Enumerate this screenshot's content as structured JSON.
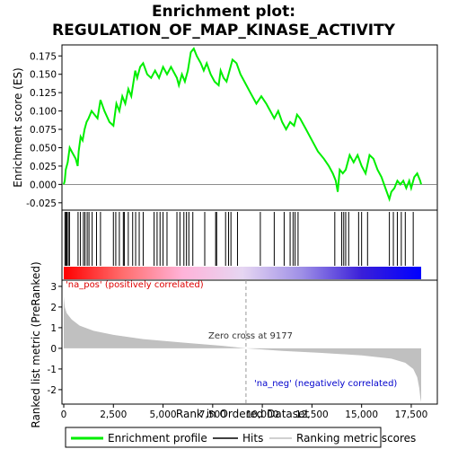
{
  "title_line1": "Enrichment plot:",
  "title_line2": "REGULATION_OF_MAP_KINASE_ACTIVITY",
  "chart_data": {
    "type": "line",
    "x_axis": {
      "label": "Rank in Ordered Dataset",
      "range": [
        0,
        18000
      ],
      "ticks": [
        0,
        2500,
        5000,
        7500,
        10000,
        12500,
        15000,
        17500
      ],
      "tick_labels": [
        "0",
        "2,500",
        "5,000",
        "7,500",
        "10,000",
        "12,500",
        "15,000",
        "17,500"
      ]
    },
    "top_panel": {
      "ylabel": "Enrichment score (ES)",
      "ylim": [
        -0.035,
        0.19
      ],
      "yticks": [
        -0.025,
        0,
        0.025,
        0.05,
        0.075,
        0.1,
        0.125,
        0.15,
        0.175
      ],
      "ytick_labels": [
        "-0.025",
        "0.000",
        "0.025",
        "0.050",
        "0.075",
        "0.100",
        "0.125",
        "0.150",
        "0.175"
      ],
      "series_name": "Enrichment profile",
      "color": "#00ee00",
      "profile": [
        [
          0,
          0
        ],
        [
          50,
          0.005
        ],
        [
          100,
          0.02
        ],
        [
          200,
          0.03
        ],
        [
          300,
          0.05
        ],
        [
          400,
          0.045
        ],
        [
          600,
          0.035
        ],
        [
          700,
          0.025
        ],
        [
          750,
          0.045
        ],
        [
          850,
          0.065
        ],
        [
          950,
          0.06
        ],
        [
          1050,
          0.075
        ],
        [
          1150,
          0.085
        ],
        [
          1250,
          0.09
        ],
        [
          1400,
          0.1
        ],
        [
          1550,
          0.095
        ],
        [
          1700,
          0.09
        ],
        [
          1850,
          0.115
        ],
        [
          2050,
          0.1
        ],
        [
          2300,
          0.085
        ],
        [
          2500,
          0.08
        ],
        [
          2650,
          0.11
        ],
        [
          2800,
          0.1
        ],
        [
          2950,
          0.12
        ],
        [
          3100,
          0.11
        ],
        [
          3250,
          0.13
        ],
        [
          3400,
          0.12
        ],
        [
          3600,
          0.155
        ],
        [
          3700,
          0.145
        ],
        [
          3850,
          0.16
        ],
        [
          4000,
          0.165
        ],
        [
          4200,
          0.15
        ],
        [
          4400,
          0.145
        ],
        [
          4600,
          0.155
        ],
        [
          4800,
          0.145
        ],
        [
          5000,
          0.16
        ],
        [
          5200,
          0.15
        ],
        [
          5400,
          0.16
        ],
        [
          5700,
          0.145
        ],
        [
          5800,
          0.135
        ],
        [
          5950,
          0.15
        ],
        [
          6100,
          0.14
        ],
        [
          6250,
          0.155
        ],
        [
          6400,
          0.18
        ],
        [
          6550,
          0.185
        ],
        [
          6700,
          0.175
        ],
        [
          6900,
          0.165
        ],
        [
          7050,
          0.155
        ],
        [
          7200,
          0.165
        ],
        [
          7400,
          0.15
        ],
        [
          7600,
          0.14
        ],
        [
          7800,
          0.135
        ],
        [
          7900,
          0.155
        ],
        [
          8050,
          0.145
        ],
        [
          8200,
          0.14
        ],
        [
          8350,
          0.155
        ],
        [
          8500,
          0.17
        ],
        [
          8700,
          0.165
        ],
        [
          8900,
          0.15
        ],
        [
          9100,
          0.14
        ],
        [
          9400,
          0.125
        ],
        [
          9700,
          0.11
        ],
        [
          9950,
          0.12
        ],
        [
          10200,
          0.11
        ],
        [
          10400,
          0.1
        ],
        [
          10600,
          0.09
        ],
        [
          10800,
          0.1
        ],
        [
          11000,
          0.085
        ],
        [
          11200,
          0.075
        ],
        [
          11400,
          0.085
        ],
        [
          11600,
          0.08
        ],
        [
          11750,
          0.095
        ],
        [
          11900,
          0.09
        ],
        [
          12200,
          0.075
        ],
        [
          12500,
          0.06
        ],
        [
          12800,
          0.045
        ],
        [
          13100,
          0.035
        ],
        [
          13350,
          0.025
        ],
        [
          13550,
          0.015
        ],
        [
          13700,
          0.005
        ],
        [
          13800,
          -0.01
        ],
        [
          13900,
          0.02
        ],
        [
          14050,
          0.015
        ],
        [
          14200,
          0.02
        ],
        [
          14400,
          0.04
        ],
        [
          14600,
          0.03
        ],
        [
          14800,
          0.04
        ],
        [
          15000,
          0.025
        ],
        [
          15200,
          0.015
        ],
        [
          15400,
          0.04
        ],
        [
          15600,
          0.035
        ],
        [
          15800,
          0.02
        ],
        [
          16000,
          0.01
        ],
        [
          16200,
          -0.005
        ],
        [
          16400,
          -0.02
        ],
        [
          16500,
          -0.01
        ],
        [
          16650,
          -0.005
        ],
        [
          16800,
          0.005
        ],
        [
          16950,
          0.0
        ],
        [
          17100,
          0.005
        ],
        [
          17250,
          -0.005
        ],
        [
          17400,
          0.005
        ],
        [
          17500,
          -0.005
        ],
        [
          17650,
          0.01
        ],
        [
          17800,
          0.015
        ],
        [
          17950,
          0.005
        ],
        [
          18000,
          0
        ]
      ]
    },
    "hits_panel": {
      "series_name": "Hits",
      "hit_ranks": [
        60,
        110,
        160,
        230,
        290,
        720,
        840,
        990,
        1070,
        1180,
        1270,
        1430,
        1650,
        1850,
        2500,
        2620,
        2800,
        3000,
        3050,
        3250,
        3470,
        3620,
        3800,
        4000,
        4550,
        4700,
        4850,
        5000,
        5200,
        5700,
        5850,
        6050,
        6180,
        6300,
        6500,
        7100,
        7650,
        7700,
        8150,
        8300,
        8420,
        8750,
        9900,
        10600,
        11100,
        11400,
        11550,
        11650,
        11800,
        13650,
        14000,
        14100,
        14200,
        14350,
        14850,
        15000,
        15300,
        16400,
        16600,
        16800,
        17000,
        17200,
        17600
      ],
      "bar_gradient": [
        "#ff0000",
        "#ff6e6e",
        "#ffb3d9",
        "#e6d6f2",
        "#9e8fe6",
        "#3a1fd9",
        "#0000ff"
      ]
    },
    "metric_panel": {
      "ylabel": "Ranked list metric (PreRanked)",
      "ylim": [
        -2.7,
        3.3
      ],
      "yticks": [
        -2,
        -1,
        0,
        1,
        2,
        3
      ],
      "ytick_labels": [
        "-2",
        "-1",
        "0",
        "1",
        "2",
        "3"
      ],
      "series_name": "Ranking metric scores",
      "fill_color": "#c0c0c0",
      "zero_cross_rank": 9177,
      "metric": [
        [
          0,
          2.5
        ],
        [
          50,
          2.0
        ],
        [
          150,
          1.7
        ],
        [
          400,
          1.4
        ],
        [
          800,
          1.1
        ],
        [
          1500,
          0.85
        ],
        [
          2500,
          0.65
        ],
        [
          4000,
          0.45
        ],
        [
          6000,
          0.28
        ],
        [
          8000,
          0.12
        ],
        [
          9177,
          0
        ],
        [
          11000,
          -0.12
        ],
        [
          13000,
          -0.22
        ],
        [
          15000,
          -0.34
        ],
        [
          16500,
          -0.5
        ],
        [
          17200,
          -0.7
        ],
        [
          17600,
          -1.0
        ],
        [
          17800,
          -1.4
        ],
        [
          17900,
          -1.9
        ],
        [
          17960,
          -2.4
        ],
        [
          18000,
          -2.6
        ]
      ]
    },
    "annotations": {
      "pos_label": "'na_pos' (positively correlated)",
      "neg_label": "'na_neg' (negatively correlated)",
      "zero_cross_label": "Zero cross at 9177"
    }
  },
  "legend": {
    "items": [
      {
        "label": "Enrichment profile",
        "color": "#00ee00"
      },
      {
        "label": "Hits",
        "color": "#000000"
      },
      {
        "label": "Ranking metric scores",
        "color": "#c0c0c0"
      }
    ]
  }
}
